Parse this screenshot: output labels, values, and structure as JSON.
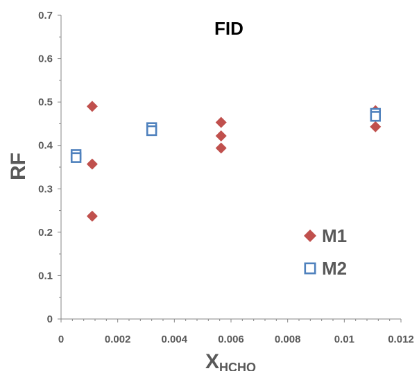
{
  "chart_data": {
    "type": "scatter",
    "title": "FID",
    "xlabel": "X",
    "xlabel_subscript": "HCHO",
    "ylabel": "RF",
    "xlim": [
      0,
      0.012
    ],
    "ylim": [
      0,
      0.7
    ],
    "x_ticks": [
      "0",
      "0.002",
      "0.004",
      "0.006",
      "0.008",
      "0.01",
      "0.012"
    ],
    "y_ticks": [
      "0",
      "0.1",
      "0.2",
      "0.3",
      "0.4",
      "0.5",
      "0.6",
      "0.7"
    ],
    "grid": false,
    "legend_position": "bottom-right",
    "series": [
      {
        "name": "M1",
        "marker": "diamond",
        "color": "#c0504d",
        "points": [
          {
            "x": 0.0011,
            "y": 0.49
          },
          {
            "x": 0.0011,
            "y": 0.357
          },
          {
            "x": 0.0011,
            "y": 0.237
          },
          {
            "x": 0.00565,
            "y": 0.453
          },
          {
            "x": 0.00565,
            "y": 0.422
          },
          {
            "x": 0.00565,
            "y": 0.394
          },
          {
            "x": 0.0111,
            "y": 0.48
          },
          {
            "x": 0.0111,
            "y": 0.443
          }
        ]
      },
      {
        "name": "M2",
        "marker": "open-square",
        "color": "#4f81bd",
        "points": [
          {
            "x": 0.00053,
            "y": 0.379
          },
          {
            "x": 0.00053,
            "y": 0.372
          },
          {
            "x": 0.0032,
            "y": 0.441
          },
          {
            "x": 0.0032,
            "y": 0.434
          },
          {
            "x": 0.0111,
            "y": 0.474
          },
          {
            "x": 0.0111,
            "y": 0.467
          }
        ]
      }
    ]
  }
}
